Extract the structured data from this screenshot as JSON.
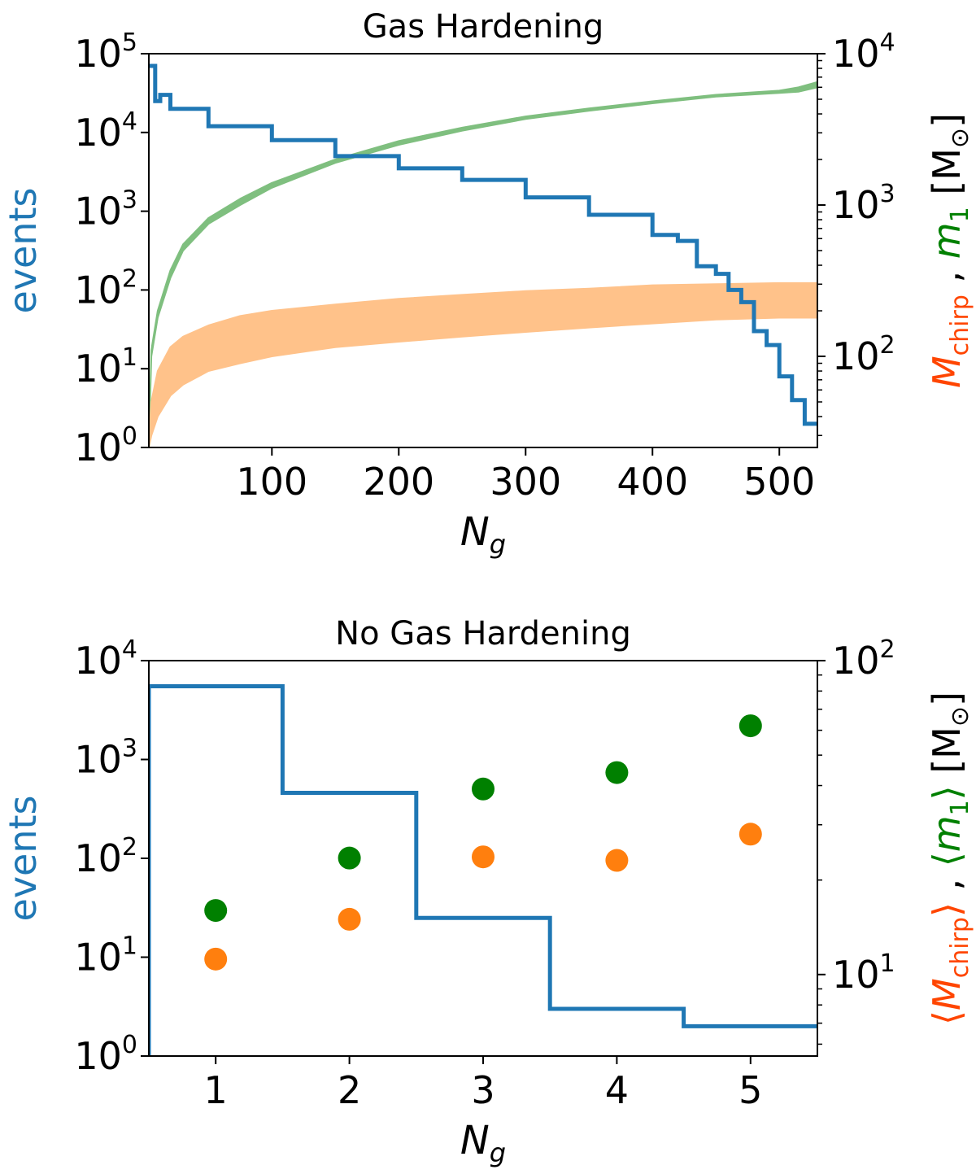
{
  "colors": {
    "events": "#1f77b4",
    "m1_band": "#7fbf7f",
    "mchirp_band": "#ffc28a",
    "m1_points": "#008000",
    "mchirp_points": "#ff7f0e",
    "mchirp_label": "#ff4500",
    "m1_label": "#008000"
  },
  "chart_data": [
    {
      "type": "line",
      "title": "Gas Hardening",
      "xlabel": "N_g",
      "ylabel_left": "events",
      "ylabel_right": "M_chirp , m_1 [M_sun]",
      "xlim": [
        3,
        530
      ],
      "x_ticks": [
        100,
        200,
        300,
        400,
        500
      ],
      "x_tick_labels": [
        "100",
        "200",
        "300",
        "400",
        "500"
      ],
      "y_left_scale": "log",
      "y_left_lim": [
        1,
        100000
      ],
      "y_left_tick_labels": [
        "10",
        "10",
        "10",
        "10",
        "10",
        "10"
      ],
      "y_left_tick_exps": [
        "0",
        "1",
        "2",
        "3",
        "4",
        "5"
      ],
      "y_right_scale": "log",
      "y_right_lim": [
        25,
        10000
      ],
      "y_right_tick_labels": [
        "10",
        "10",
        "10"
      ],
      "y_right_tick_exps": [
        "2",
        "3",
        "4"
      ],
      "series": [
        {
          "role": "events",
          "style": "step",
          "x": [
            3,
            7,
            8,
            12,
            20,
            50,
            100,
            150,
            200,
            250,
            300,
            350,
            400,
            420,
            435,
            450,
            460,
            470,
            480,
            490,
            500,
            510,
            520,
            530
          ],
          "y": [
            70000,
            70000,
            25000,
            30000,
            20000,
            12000,
            8000,
            5000,
            3500,
            2500,
            1500,
            900,
            500,
            420,
            200,
            160,
            100,
            70,
            30,
            20,
            8,
            4,
            2,
            2
          ]
        },
        {
          "role": "m1",
          "style": "band",
          "x": [
            3,
            5,
            10,
            20,
            30,
            50,
            75,
            100,
            150,
            200,
            250,
            300,
            350,
            400,
            450,
            500,
            515,
            530
          ],
          "y_low": [
            25,
            100,
            180,
            330,
            500,
            750,
            1000,
            1300,
            1900,
            2500,
            3100,
            3700,
            4200,
            4700,
            5200,
            5500,
            5600,
            6000
          ],
          "y_high": [
            25,
            110,
            200,
            370,
            550,
            820,
            1100,
            1400,
            2000,
            2650,
            3250,
            3850,
            4350,
            4850,
            5350,
            5700,
            6000,
            6500
          ]
        },
        {
          "role": "mchirp",
          "style": "band",
          "x": [
            3,
            5,
            10,
            20,
            30,
            50,
            75,
            100,
            150,
            200,
            250,
            300,
            350,
            400,
            450,
            500,
            530
          ],
          "y_low": [
            25,
            30,
            40,
            55,
            65,
            80,
            90,
            100,
            115,
            125,
            135,
            145,
            155,
            165,
            175,
            180,
            180
          ],
          "y_high": [
            25,
            50,
            80,
            115,
            135,
            160,
            185,
            200,
            220,
            240,
            255,
            270,
            280,
            295,
            300,
            305,
            305
          ]
        }
      ]
    },
    {
      "type": "scatter",
      "title": "No Gas Hardening",
      "xlabel": "N_g",
      "ylabel_left": "events",
      "ylabel_right": "<M_chirp> , <m_1> [M_sun]",
      "xlim": [
        0.5,
        5.5
      ],
      "x_ticks": [
        1,
        2,
        3,
        4,
        5
      ],
      "x_tick_labels": [
        "1",
        "2",
        "3",
        "4",
        "5"
      ],
      "y_left_scale": "log",
      "y_left_lim": [
        1,
        10000
      ],
      "y_left_tick_labels": [
        "10",
        "10",
        "10",
        "10",
        "10"
      ],
      "y_left_tick_exps": [
        "0",
        "1",
        "2",
        "3",
        "4"
      ],
      "y_right_scale": "log",
      "y_right_lim": [
        5.5,
        100
      ],
      "y_right_tick_labels": [
        "10",
        "10"
      ],
      "y_right_tick_exps": [
        "1",
        "2"
      ],
      "series": [
        {
          "role": "events",
          "style": "step",
          "x": [
            1,
            2,
            3,
            4,
            5
          ],
          "y": [
            5500,
            460,
            25,
            3,
            2
          ]
        },
        {
          "role": "m1",
          "style": "points",
          "x": [
            1,
            2,
            3,
            4,
            5
          ],
          "y": [
            16,
            23.5,
            39,
            44,
            62
          ]
        },
        {
          "role": "mchirp",
          "style": "points",
          "x": [
            1,
            2,
            3,
            4,
            5
          ],
          "y": [
            11.2,
            15,
            23.7,
            23.1,
            28
          ]
        }
      ]
    }
  ]
}
